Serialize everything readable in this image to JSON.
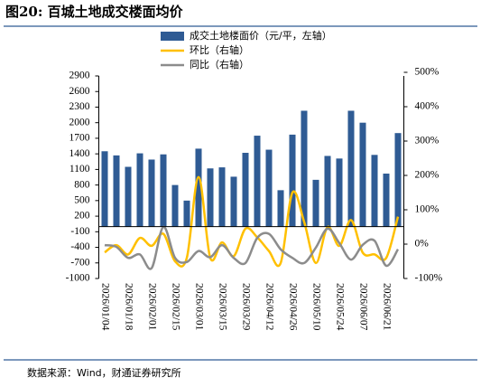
{
  "chart_data": {
    "type": "bar-line",
    "title": "图20: 百城土地成交楼面均价",
    "source": "数据来源：Wind，财通证券研究所",
    "categories": [
      "2026/01/04",
      null,
      "2026/01/18",
      null,
      "2026/02/01",
      null,
      "2026/02/15",
      null,
      "2026/03/01",
      null,
      "2026/03/15",
      null,
      "2026/03/29",
      null,
      "2026/04/12",
      null,
      "2026/04/26",
      null,
      "2026/05/10",
      null,
      "2026/05/24",
      null,
      "2026/06/07",
      null,
      "2026/06/21",
      null
    ],
    "series": [
      {
        "name": "成交土地楼面价（元/平，左轴）",
        "type": "bar",
        "color": "#2f5b94",
        "values": [
          1450,
          1370,
          1150,
          1410,
          1290,
          1390,
          800,
          500,
          1500,
          1120,
          1140,
          960,
          1420,
          1750,
          1480,
          700,
          1770,
          2230,
          900,
          1360,
          1310,
          2230,
          2000,
          1380,
          1020,
          1800
        ]
      },
      {
        "name": "环比（右轴）",
        "type": "line",
        "axis": "y2",
        "color": "#ffc000",
        "values": [
          -24,
          -3,
          -30,
          18,
          -5,
          30,
          -50,
          -40,
          195,
          -40,
          5,
          -35,
          45,
          20,
          -20,
          -55,
          150,
          65,
          -55,
          50,
          -5,
          70,
          -25,
          -30,
          -40,
          80
        ]
      },
      {
        "name": "同比（右轴）",
        "type": "line",
        "axis": "y2",
        "color": "#8c8c8c",
        "values": [
          -3,
          -8,
          -40,
          -30,
          -70,
          50,
          -40,
          -52,
          -20,
          -38,
          -3,
          -40,
          -55,
          18,
          30,
          -15,
          -40,
          -55,
          -10,
          45,
          3,
          -45,
          -2,
          10,
          -63,
          -15
        ]
      }
    ],
    "ylim": [
      -1000,
      2900
    ],
    "yticks": [
      -1000,
      -700,
      -400,
      -100,
      200,
      500,
      800,
      1100,
      1400,
      1700,
      2000,
      2300,
      2600,
      2900
    ],
    "y2lim": [
      -100,
      500
    ],
    "y2ticks": [
      {
        "value": -100,
        "label": "-100%"
      },
      {
        "value": 0,
        "label": "0%"
      },
      {
        "value": 100,
        "label": "100%"
      },
      {
        "value": 200,
        "label": "200%"
      },
      {
        "value": 300,
        "label": "300%"
      },
      {
        "value": 400,
        "label": "400%"
      },
      {
        "value": 500,
        "label": "500%"
      }
    ],
    "legend": "top",
    "grid": false
  }
}
